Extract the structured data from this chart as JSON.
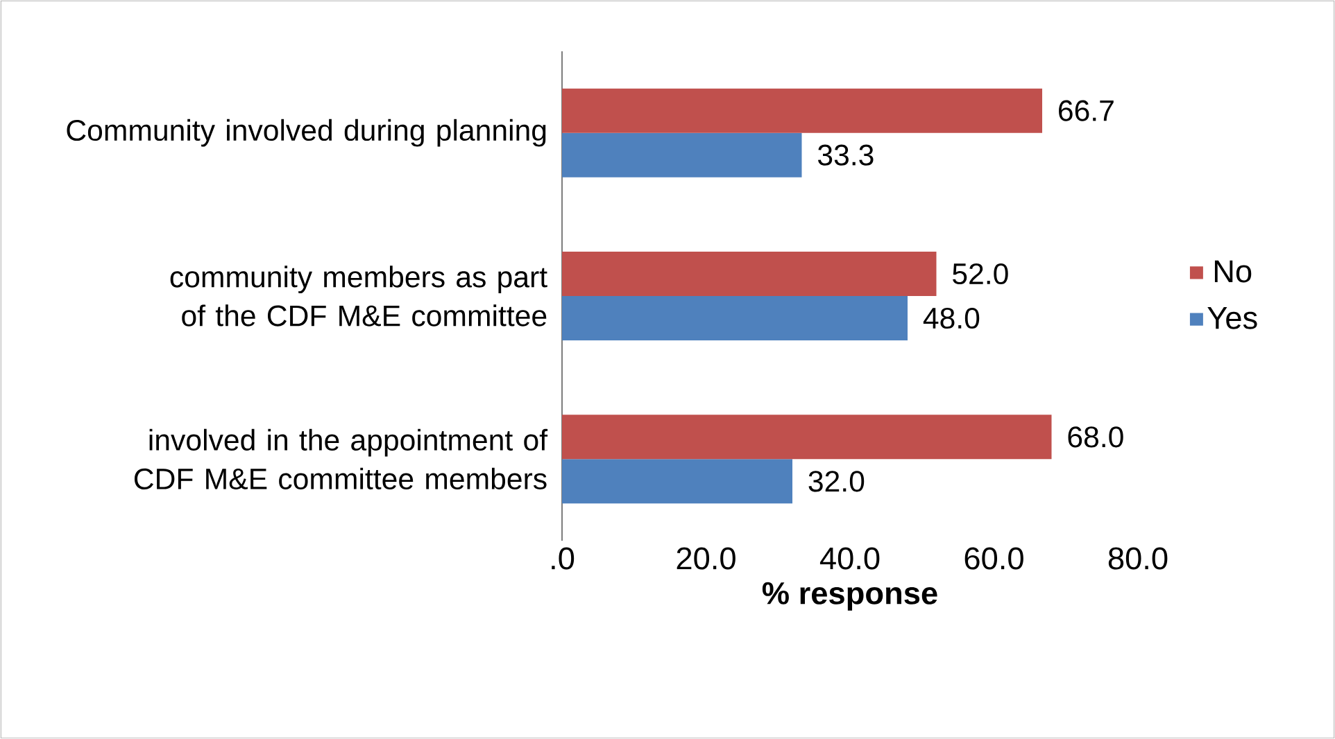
{
  "chart_data": {
    "type": "bar",
    "orientation": "horizontal",
    "xlabel": "% response",
    "categories": [
      "Community involved during planning",
      "community members as part of the CDF M&E committee",
      "involved in the appointment of CDF M&E committee members"
    ],
    "series": [
      {
        "name": "No",
        "color": "#c0504d",
        "values": [
          66.7,
          52.0,
          68.0
        ],
        "value_labels": [
          "66.7",
          "52.0",
          "68.0"
        ]
      },
      {
        "name": "Yes",
        "color": "#4f81bd",
        "values": [
          33.3,
          48.0,
          32.0
        ],
        "value_labels": [
          "33.3",
          "48.0",
          "32.0"
        ]
      }
    ],
    "xlim": [
      0,
      80
    ],
    "xticks": [
      {
        "value": 0,
        "label": ".0"
      },
      {
        "value": 20,
        "label": "20.0"
      },
      {
        "value": 40,
        "label": "40.0"
      },
      {
        "value": 60,
        "label": "60.0"
      },
      {
        "value": 80,
        "label": "80.0"
      }
    ],
    "legend": "right",
    "grid": false
  }
}
